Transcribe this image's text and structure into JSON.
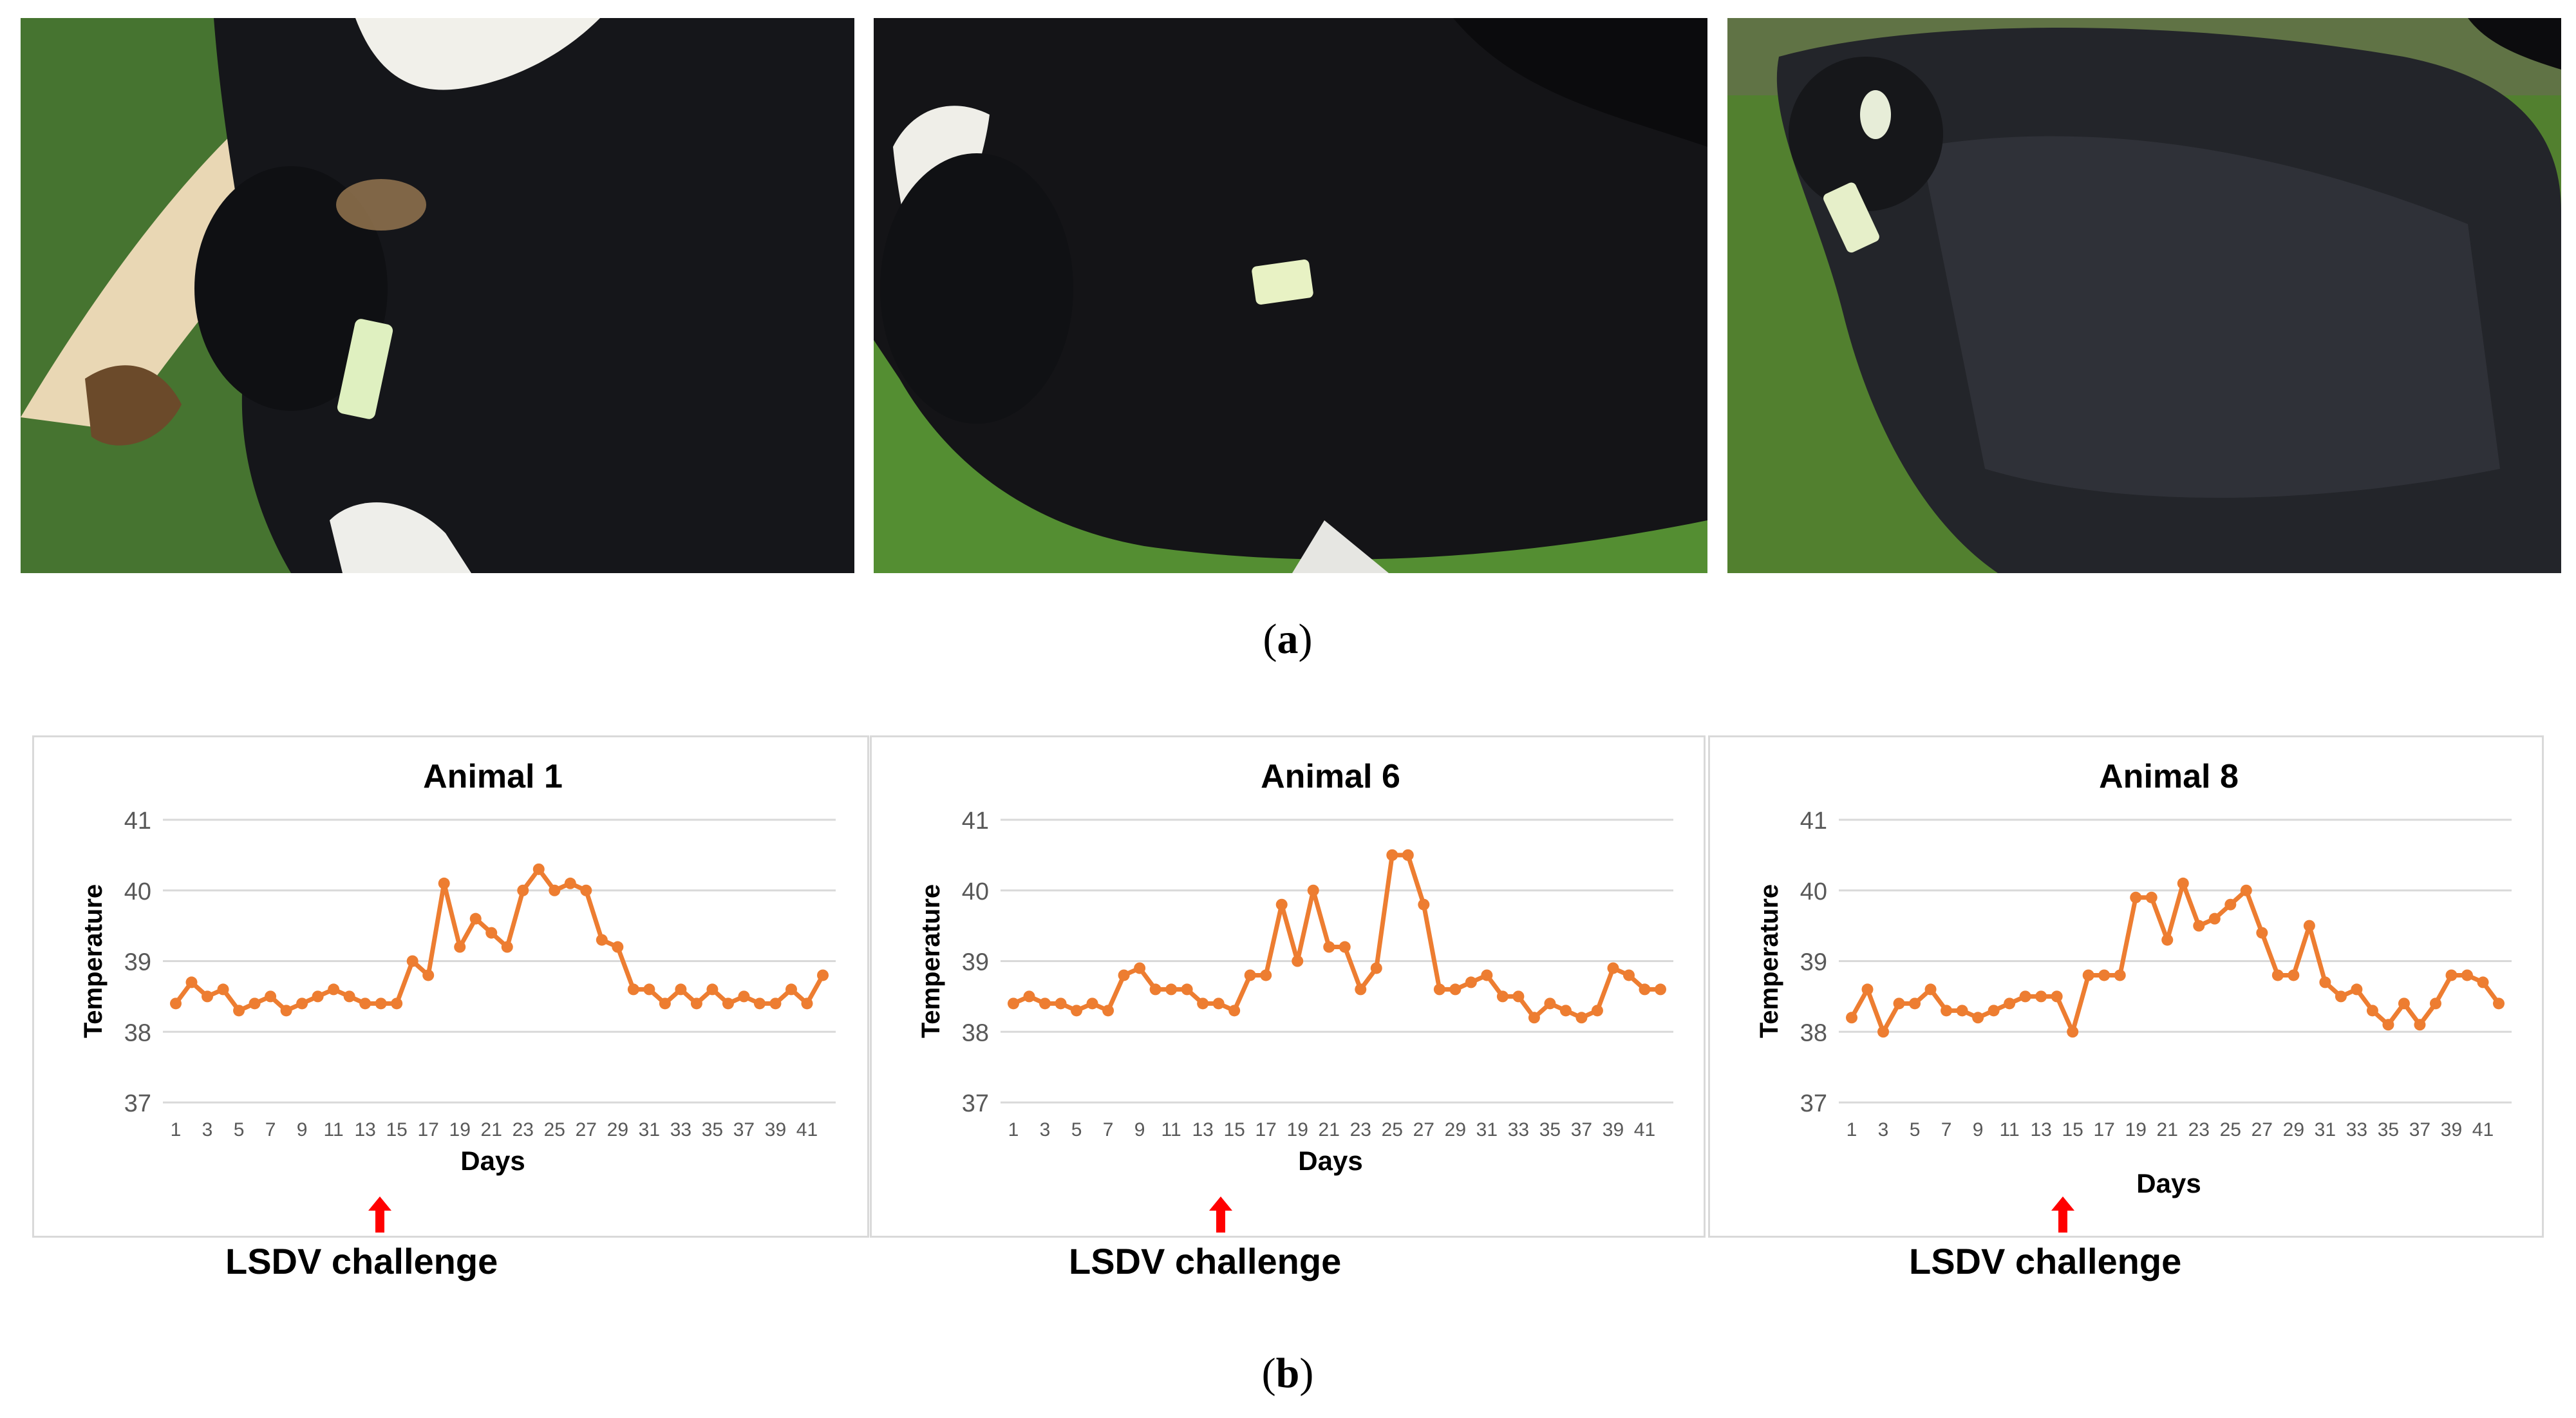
{
  "panel_labels": {
    "a": "a",
    "b": "b"
  },
  "photos": [
    {
      "caption": "calf lying on its side, black and white coat with ear tag"
    },
    {
      "caption": "calf standing, black coat with white face patch and ear tag"
    },
    {
      "caption": "calf with black coat showing lumpy skin nodules"
    }
  ],
  "colors": {
    "line": "#ED7D31",
    "grid": "#d9d9d9",
    "arrow": "#FF0000",
    "text": "#000000"
  },
  "chart_data": [
    {
      "type": "line",
      "title": "Animal 1",
      "xlabel": "Days",
      "ylabel": "Temperature",
      "ylim": [
        37,
        41
      ],
      "yticks": [
        37,
        38,
        39,
        40,
        41
      ],
      "x": [
        1,
        2,
        3,
        4,
        5,
        6,
        7,
        8,
        9,
        10,
        11,
        12,
        13,
        14,
        15,
        16,
        17,
        18,
        19,
        20,
        21,
        22,
        23,
        24,
        25,
        26,
        27,
        28,
        29,
        30,
        31,
        32,
        33,
        34,
        35,
        36,
        37,
        38,
        39,
        40,
        41,
        42
      ],
      "xtick_labels": [
        "1",
        "3",
        "5",
        "7",
        "9",
        "11",
        "13",
        "15",
        "17",
        "19",
        "21",
        "23",
        "25",
        "27",
        "29",
        "31",
        "33",
        "35",
        "37",
        "39",
        "41"
      ],
      "series": [
        {
          "name": "Temperature",
          "values": [
            38.4,
            38.7,
            38.5,
            38.6,
            38.3,
            38.4,
            38.5,
            38.3,
            38.4,
            38.5,
            38.6,
            38.5,
            38.4,
            38.4,
            38.4,
            39.0,
            38.8,
            40.1,
            39.2,
            39.6,
            39.4,
            39.2,
            40.0,
            40.3,
            40.0,
            40.1,
            40.0,
            39.3,
            39.2,
            38.6,
            38.6,
            38.4,
            38.6,
            38.4,
            38.6,
            38.4,
            38.5,
            38.4,
            38.4,
            38.6,
            38.4,
            38.8
          ]
        }
      ],
      "annotation": "LSDV challenge",
      "annotation_day": 14
    },
    {
      "type": "line",
      "title": "Animal 6",
      "xlabel": "Days",
      "ylabel": "Temperature",
      "ylim": [
        37,
        41
      ],
      "yticks": [
        37,
        38,
        39,
        40,
        41
      ],
      "x": [
        1,
        2,
        3,
        4,
        5,
        6,
        7,
        8,
        9,
        10,
        11,
        12,
        13,
        14,
        15,
        16,
        17,
        18,
        19,
        20,
        21,
        22,
        23,
        24,
        25,
        26,
        27,
        28,
        29,
        30,
        31,
        32,
        33,
        34,
        35,
        36,
        37,
        38,
        39,
        40,
        41,
        42
      ],
      "xtick_labels": [
        "1",
        "3",
        "5",
        "7",
        "9",
        "11",
        "13",
        "15",
        "17",
        "19",
        "21",
        "23",
        "25",
        "27",
        "29",
        "31",
        "33",
        "35",
        "37",
        "39",
        "41"
      ],
      "series": [
        {
          "name": "Temperature",
          "values": [
            38.4,
            38.5,
            38.4,
            38.4,
            38.3,
            38.4,
            38.3,
            38.8,
            38.9,
            38.6,
            38.6,
            38.6,
            38.4,
            38.4,
            38.3,
            38.8,
            38.8,
            39.8,
            39.0,
            40.0,
            39.2,
            39.2,
            38.6,
            38.9,
            40.5,
            40.5,
            39.8,
            38.6,
            38.6,
            38.7,
            38.8,
            38.5,
            38.5,
            38.2,
            38.4,
            38.3,
            38.2,
            38.3,
            38.9,
            38.8,
            38.6,
            38.6
          ]
        }
      ],
      "annotation": "LSDV challenge",
      "annotation_day": 14
    },
    {
      "type": "line",
      "title": "Animal 8",
      "xlabel": "Days",
      "ylabel": "Temperature",
      "ylim": [
        37,
        41
      ],
      "yticks": [
        37,
        38,
        39,
        40,
        41
      ],
      "x": [
        1,
        2,
        3,
        4,
        5,
        6,
        7,
        8,
        9,
        10,
        11,
        12,
        13,
        14,
        15,
        16,
        17,
        18,
        19,
        20,
        21,
        22,
        23,
        24,
        25,
        26,
        27,
        28,
        29,
        30,
        31,
        32,
        33,
        34,
        35,
        36,
        37,
        38,
        39,
        40,
        41,
        42
      ],
      "xtick_labels": [
        "1",
        "3",
        "5",
        "7",
        "9",
        "11",
        "13",
        "15",
        "17",
        "19",
        "21",
        "23",
        "25",
        "27",
        "29",
        "31",
        "33",
        "35",
        "37",
        "39",
        "41"
      ],
      "series": [
        {
          "name": "Temperature",
          "values": [
            38.2,
            38.6,
            38.0,
            38.4,
            38.4,
            38.6,
            38.3,
            38.3,
            38.2,
            38.3,
            38.4,
            38.5,
            38.5,
            38.5,
            38.0,
            38.8,
            38.8,
            38.8,
            39.9,
            39.9,
            39.3,
            40.1,
            39.5,
            39.6,
            39.8,
            40.0,
            39.4,
            38.8,
            38.8,
            39.5,
            38.7,
            38.5,
            38.6,
            38.3,
            38.1,
            38.4,
            38.1,
            38.4,
            38.8,
            38.8,
            38.7,
            38.4
          ]
        }
      ],
      "annotation": "LSDV challenge",
      "annotation_day": 14
    }
  ]
}
